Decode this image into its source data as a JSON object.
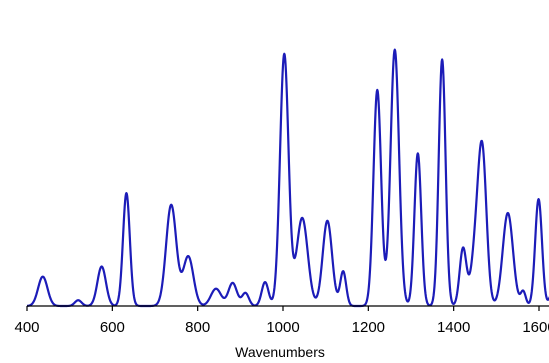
{
  "chart_data": {
    "type": "line",
    "title": "",
    "xlabel": "Wavenumbers",
    "ylabel": "",
    "xlim": [
      400,
      1650
    ],
    "ylim": [
      0,
      1
    ],
    "grid": false,
    "line_color": "#1c1cb8",
    "axis_color": "#000000",
    "x_ticks": [
      400,
      600,
      800,
      1000,
      1200,
      1400,
      1600
    ],
    "x_tick_labels": [
      "400",
      "600",
      "800",
      "1000",
      "1200",
      "1400",
      "1600"
    ],
    "peaks": [
      {
        "x": 437,
        "y": 0.102,
        "w": 11
      },
      {
        "x": 520,
        "y": 0.02,
        "w": 8
      },
      {
        "x": 575,
        "y": 0.137,
        "w": 10
      },
      {
        "x": 633,
        "y": 0.392,
        "w": 8
      },
      {
        "x": 738,
        "y": 0.351,
        "w": 12
      },
      {
        "x": 778,
        "y": 0.172,
        "w": 12
      },
      {
        "x": 843,
        "y": 0.06,
        "w": 12
      },
      {
        "x": 882,
        "y": 0.08,
        "w": 10
      },
      {
        "x": 912,
        "y": 0.045,
        "w": 8
      },
      {
        "x": 958,
        "y": 0.083,
        "w": 8
      },
      {
        "x": 1003,
        "y": 0.874,
        "w": 10
      },
      {
        "x": 1045,
        "y": 0.306,
        "w": 13
      },
      {
        "x": 1104,
        "y": 0.296,
        "w": 11
      },
      {
        "x": 1141,
        "y": 0.12,
        "w": 7
      },
      {
        "x": 1221,
        "y": 0.75,
        "w": 9
      },
      {
        "x": 1262,
        "y": 0.89,
        "w": 10
      },
      {
        "x": 1316,
        "y": 0.53,
        "w": 8
      },
      {
        "x": 1373,
        "y": 0.856,
        "w": 8
      },
      {
        "x": 1422,
        "y": 0.2,
        "w": 8
      },
      {
        "x": 1450,
        "y": 0.165,
        "w": 10
      },
      {
        "x": 1467,
        "y": 0.53,
        "w": 10
      },
      {
        "x": 1527,
        "y": 0.323,
        "w": 12
      },
      {
        "x": 1563,
        "y": 0.05,
        "w": 6
      },
      {
        "x": 1599,
        "y": 0.371,
        "w": 8
      },
      {
        "x": 1630,
        "y": 0.04,
        "w": 6
      }
    ]
  }
}
